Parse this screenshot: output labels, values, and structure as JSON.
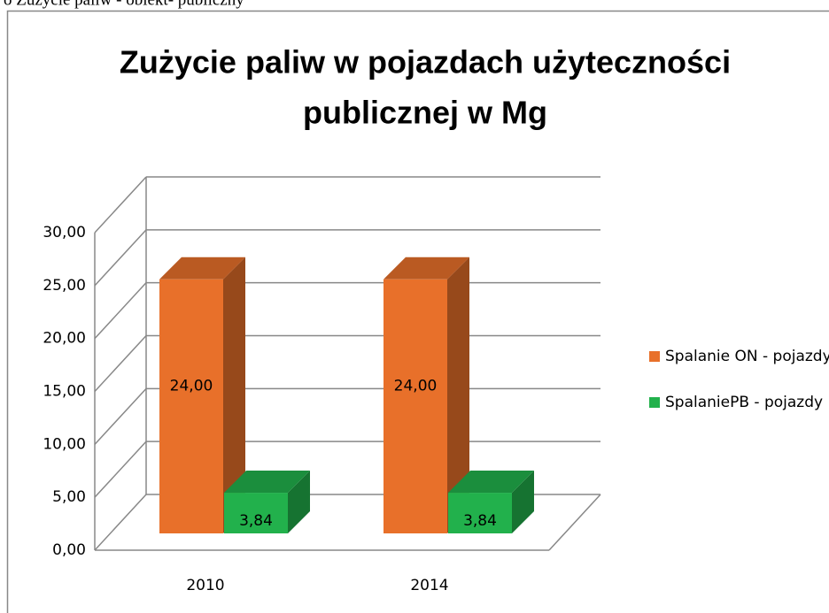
{
  "chart_data": {
    "type": "bar3d",
    "caption": "o Zużycie paliw - obiekt- publiczny",
    "title": [
      "Zużycie paliw  w pojazdach użyteczności",
      "publicznej  w Mg"
    ],
    "categories": [
      "2010",
      "2014"
    ],
    "series": [
      {
        "name": "Spalanie ON - pojazdy",
        "color": "#e8702a",
        "values": [
          24,
          24
        ],
        "value_labels": [
          "24,00",
          "24,00"
        ]
      },
      {
        "name": "SpalaniePB - pojazdy",
        "color": "#22b14c",
        "values": [
          3.84,
          3.84
        ],
        "value_labels": [
          "3,84",
          "3,84"
        ]
      }
    ],
    "ylim": [
      0,
      30
    ],
    "yticks": [
      {
        "value": 0,
        "label": "0,00"
      },
      {
        "value": 5,
        "label": "5,00"
      },
      {
        "value": 10,
        "label": "10,00"
      },
      {
        "value": 15,
        "label": "15,00"
      },
      {
        "value": 20,
        "label": "20,00"
      },
      {
        "value": 25,
        "label": "25,00"
      },
      {
        "value": 30,
        "label": "30,00"
      }
    ],
    "grid": true,
    "legend": "right"
  }
}
